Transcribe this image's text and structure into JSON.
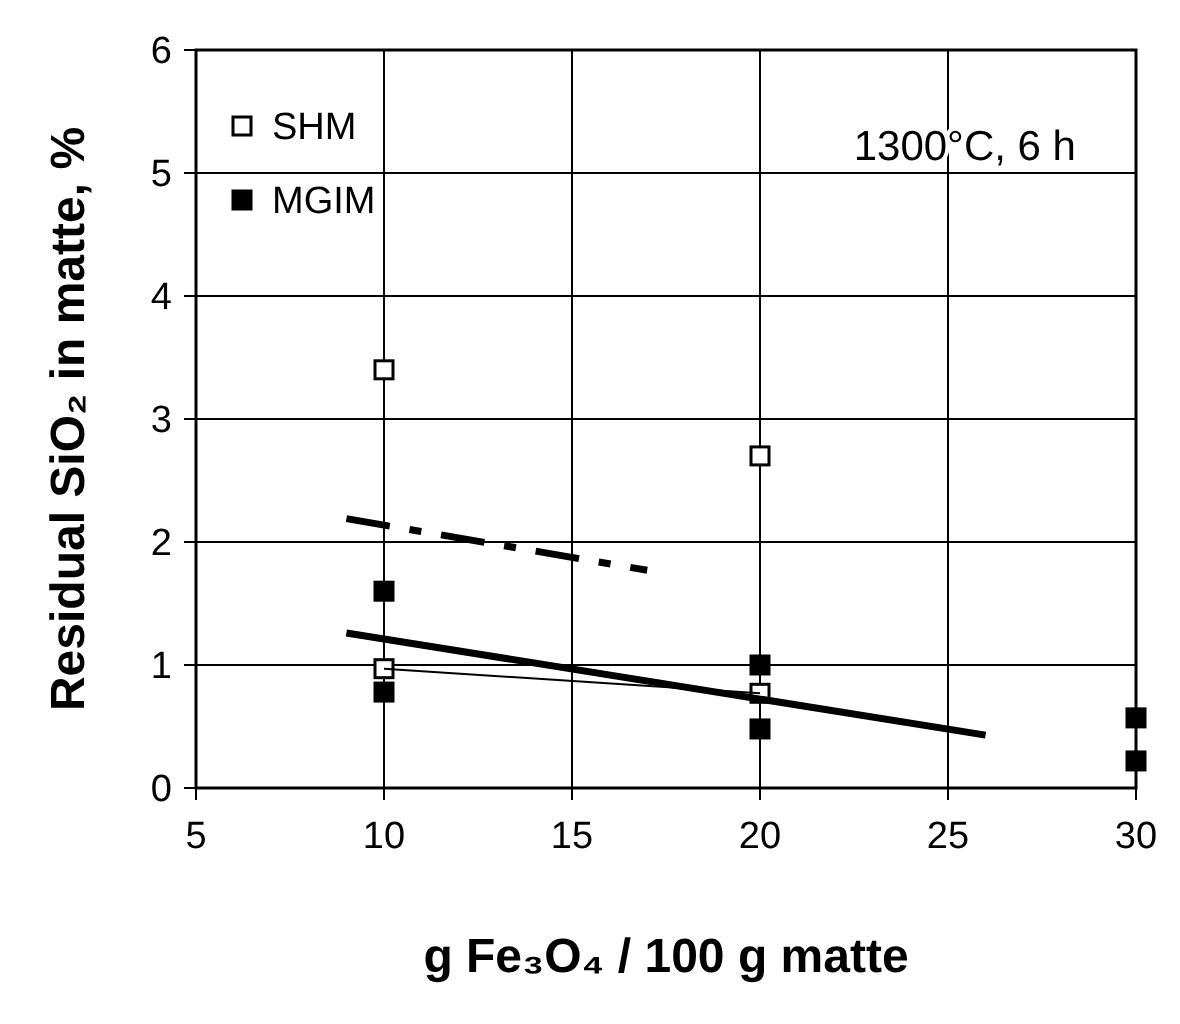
{
  "chart_data": {
    "type": "scatter",
    "xlabel": "g Fe₃O₄ / 100 g matte",
    "ylabel": "Residual SiO₂ in matte, %",
    "xlim": [
      5,
      30
    ],
    "xticks": [
      5,
      10,
      15,
      20,
      25,
      30
    ],
    "ylim": [
      0,
      6
    ],
    "yticks": [
      0,
      1,
      2,
      3,
      4,
      5,
      6
    ],
    "grid": true,
    "legend": "top left",
    "marker": "square",
    "annotations": [
      "1300°C, 6 h"
    ],
    "series": [
      {
        "name": "SHM",
        "color": "#ffffff",
        "x": [
          10,
          10,
          20,
          20
        ],
        "values": [
          3.4,
          0.97,
          2.7,
          0.77
        ]
      },
      {
        "name": "MGIM",
        "color": "#000000",
        "x": [
          10,
          10,
          20,
          20,
          30,
          30
        ],
        "values": [
          1.6,
          0.78,
          1.0,
          0.48,
          0.57,
          0.22
        ]
      },
      {
        "type": "line",
        "color": "#000000",
        "marker": "none",
        "line_style": "solid",
        "x": [
          10,
          20
        ],
        "values": [
          0.97,
          0.77
        ]
      },
      {
        "type": "line",
        "color": "#000000",
        "marker": "none",
        "line_style": "solid",
        "x": [
          9,
          26
        ],
        "values": [
          1.26,
          0.43
        ]
      },
      {
        "type": "line",
        "color": "#000000",
        "marker": "none",
        "line_style": "dashed",
        "x": [
          9,
          17
        ],
        "values": [
          2.19,
          1.77
        ]
      }
    ]
  }
}
